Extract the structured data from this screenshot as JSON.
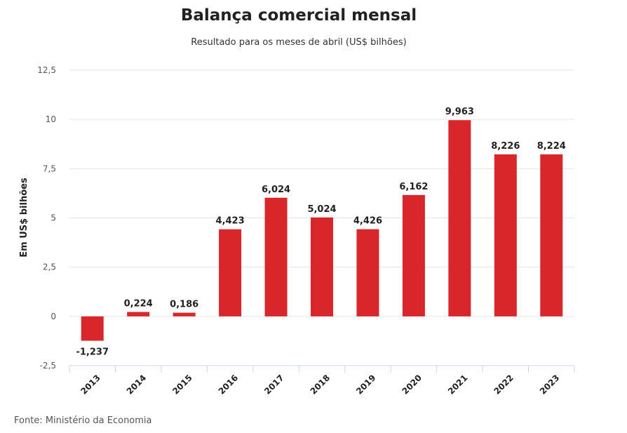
{
  "chart_data": {
    "type": "bar",
    "title": "Balança comercial mensal",
    "subtitle": "Resultado para os meses de abril (US$ bilhões)",
    "ylabel": "Em US$ bilhões",
    "xlabel": "",
    "ylim": [
      -2.5,
      12.5
    ],
    "yticks": [
      -2.5,
      0,
      2.5,
      5,
      7.5,
      10,
      12.5
    ],
    "ytick_labels": [
      "-2,5",
      "0",
      "2,5",
      "5",
      "7,5",
      "10",
      "12,5"
    ],
    "categories": [
      "2013",
      "2014",
      "2015",
      "2016",
      "2017",
      "2018",
      "2019",
      "2020",
      "2021",
      "2022",
      "2023"
    ],
    "values": [
      -1.237,
      0.224,
      0.186,
      4.423,
      6.024,
      5.024,
      4.426,
      6.162,
      9.963,
      8.226,
      8.224
    ],
    "labels": [
      "-1,237",
      "0,224",
      "0,186",
      "4,423",
      "6,024",
      "5,024",
      "4,426",
      "6,162",
      "9,963",
      "8,226",
      "8,224"
    ],
    "grid": true,
    "bar_color": "#d9262b",
    "source": "Fonte: Ministério da Economia"
  }
}
